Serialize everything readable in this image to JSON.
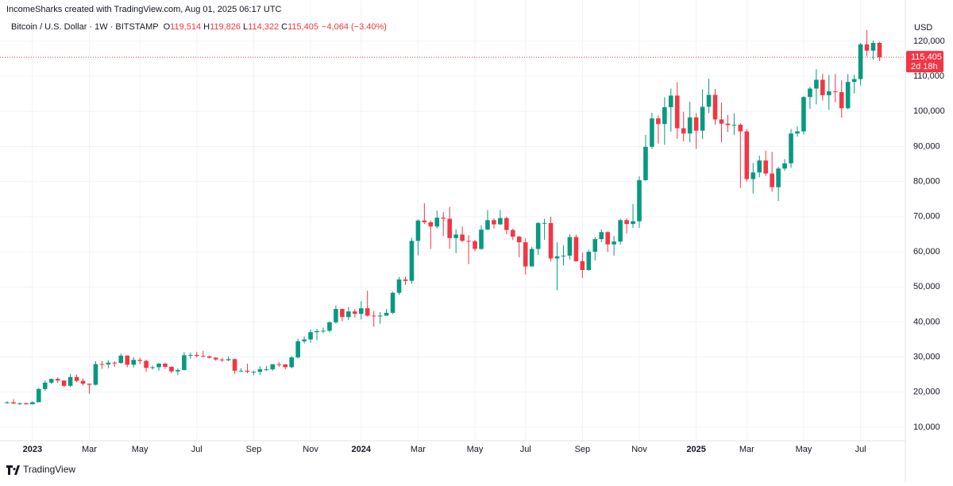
{
  "header": {
    "attribution": "IncomeSharks created with TradingView.com, Aug 01, 2025 06:17 UTC",
    "symbol": "Bitcoin / U.S. Dollar · 1W · BITSTAMP",
    "legend": [
      {
        "key": "O",
        "value": "119,514"
      },
      {
        "key": "H",
        "value": "119,826"
      },
      {
        "key": "L",
        "value": "114,322"
      },
      {
        "key": "C",
        "value": "115,405"
      }
    ],
    "change": "−4,064 (−3.40%)"
  },
  "chart_data": {
    "type": "candlestick",
    "currency": "USD",
    "up_color": "#089981",
    "down_color": "#f23645",
    "grid": true,
    "categories": [
      null,
      null,
      null,
      null,
      "2023",
      null,
      null,
      null,
      null,
      null,
      null,
      null,
      null,
      "Mar",
      null,
      null,
      null,
      null,
      null,
      null,
      null,
      "May",
      null,
      null,
      null,
      null,
      null,
      null,
      null,
      null,
      "Jul",
      null,
      null,
      null,
      null,
      null,
      null,
      null,
      null,
      "Sep",
      null,
      null,
      null,
      null,
      null,
      null,
      null,
      null,
      "Nov",
      null,
      null,
      null,
      null,
      null,
      null,
      null,
      "2024",
      null,
      null,
      null,
      null,
      null,
      null,
      null,
      null,
      "Mar",
      null,
      null,
      null,
      null,
      null,
      null,
      null,
      null,
      "May",
      null,
      null,
      null,
      null,
      null,
      null,
      null,
      "Jul",
      null,
      null,
      null,
      null,
      null,
      null,
      null,
      null,
      "Sep",
      null,
      null,
      null,
      null,
      null,
      null,
      null,
      null,
      "Nov",
      null,
      null,
      null,
      null,
      null,
      null,
      null,
      null,
      "2025",
      null,
      null,
      null,
      null,
      null,
      null,
      null,
      "Mar",
      null,
      null,
      null,
      null,
      null,
      null,
      null,
      null,
      "May",
      null,
      null,
      null,
      null,
      null,
      null,
      null,
      null,
      "Jul",
      null,
      null,
      null
    ],
    "open": [
      17000,
      17100,
      16750,
      16840,
      16550,
      17130,
      20900,
      22700,
      23750,
      23300,
      21800,
      24300,
      23200,
      22400,
      22100,
      28000,
      27900,
      28400,
      28300,
      30400,
      27800,
      29200,
      28900,
      26900,
      27100,
      28100,
      27200,
      25900,
      26300,
      30500,
      30600,
      30300,
      30200,
      29800,
      29300,
      29100,
      29400,
      26100,
      26100,
      25800,
      25800,
      26500,
      26500,
      27950,
      27900,
      27100,
      29900,
      34500,
      35000,
      37100,
      37400,
      37500,
      39900,
      43700,
      41400,
      43000,
      42300,
      43900,
      41800,
      41600,
      41800,
      42600,
      48300,
      52100,
      51700,
      63100,
      68900,
      68400,
      67200,
      69700,
      69400,
      63900,
      64900,
      63100,
      63000,
      60800,
      66300,
      69000,
      67800,
      69600,
      66200,
      64300,
      62700,
      55800,
      60800,
      68200,
      68200,
      58100,
      58700,
      58900,
      64200,
      57300,
      54800,
      60000,
      63600,
      65600,
      62100,
      62900,
      69000,
      67900,
      68700,
      80400,
      89900,
      98000,
      96400,
      101200,
      104500,
      95200,
      93700,
      98300,
      94500,
      101300,
      104700,
      97700,
      96500,
      96100,
      96200,
      94300,
      80700,
      82600,
      86000,
      82300,
      78400,
      83700,
      85200,
      93700,
      94300,
      104100,
      106500,
      109000,
      104600,
      105700,
      105500,
      100900,
      108400,
      109200,
      119100,
      117300,
      119514
    ],
    "high": [
      17400,
      18000,
      17000,
      16950,
      17400,
      21200,
      23300,
      23900,
      24200,
      23400,
      25200,
      25000,
      23900,
      22400,
      28800,
      28900,
      29100,
      28800,
      31000,
      30500,
      30000,
      29800,
      29200,
      27600,
      28300,
      28400,
      27400,
      26800,
      31400,
      31300,
      31500,
      31800,
      30400,
      30000,
      29800,
      30200,
      29500,
      26800,
      28100,
      26100,
      27400,
      27500,
      28000,
      28600,
      28000,
      30300,
      35200,
      35900,
      37900,
      38000,
      38400,
      40200,
      44700,
      43800,
      44300,
      43700,
      45900,
      48900,
      43100,
      42800,
      43700,
      48600,
      52800,
      52900,
      64000,
      69200,
      73800,
      68900,
      71700,
      71300,
      72800,
      66400,
      67200,
      64700,
      63400,
      67500,
      71900,
      69500,
      71900,
      70000,
      66600,
      64500,
      63800,
      61400,
      68400,
      69400,
      70000,
      62700,
      61800,
      65000,
      64900,
      59800,
      60600,
      64100,
      66400,
      65800,
      64500,
      69400,
      69500,
      73600,
      81500,
      93300,
      99600,
      98800,
      104000,
      106500,
      108300,
      99900,
      102700,
      99500,
      106300,
      109300,
      106400,
      102500,
      99000,
      99400,
      96500,
      95000,
      85300,
      87400,
      88800,
      88500,
      84200,
      86400,
      95000,
      95700,
      104300,
      107000,
      112000,
      110700,
      110400,
      110600,
      108900,
      110600,
      110500,
      119500,
      123200,
      120200,
      119826
    ],
    "low": [
      16700,
      16600,
      16300,
      16400,
      16500,
      17100,
      20400,
      22300,
      22600,
      21400,
      21400,
      22800,
      21900,
      19600,
      21900,
      26600,
      26800,
      27200,
      28100,
      27100,
      27000,
      28000,
      25800,
      26400,
      26100,
      26600,
      25400,
      24800,
      26200,
      29500,
      29900,
      30000,
      29600,
      28900,
      28600,
      28800,
      25200,
      25800,
      25400,
      24900,
      24900,
      26000,
      26100,
      27200,
      26500,
      26800,
      29600,
      33900,
      34100,
      34800,
      36800,
      37000,
      39500,
      40200,
      40500,
      41300,
      40700,
      41500,
      38600,
      39500,
      41800,
      42300,
      47700,
      50600,
      50900,
      59000,
      67900,
      60800,
      66600,
      64500,
      60800,
      59600,
      62800,
      56500,
      60100,
      60600,
      66300,
      66600,
      67600,
      65000,
      63300,
      58400,
      53500,
      56500,
      59100,
      63400,
      57200,
      49000,
      56100,
      57800,
      57200,
      52500,
      54600,
      57500,
      62700,
      59900,
      58900,
      62000,
      65200,
      66800,
      66800,
      80200,
      89300,
      90800,
      90500,
      94200,
      92200,
      91500,
      91200,
      89300,
      92100,
      99500,
      96200,
      91200,
      94100,
      93300,
      78200,
      80000,
      76600,
      81200,
      81600,
      77100,
      74500,
      83100,
      83900,
      92800,
      93400,
      100700,
      102000,
      103100,
      100400,
      102600,
      98200,
      100600,
      105100,
      107400,
      115700,
      114700,
      114322
    ],
    "close": [
      17100,
      16750,
      16840,
      16550,
      17130,
      20900,
      22700,
      23750,
      23300,
      21800,
      24300,
      23200,
      22400,
      22100,
      28000,
      27900,
      28400,
      28300,
      30400,
      27800,
      29200,
      28900,
      26900,
      27100,
      28100,
      27200,
      25900,
      26300,
      30500,
      30600,
      30300,
      30200,
      29800,
      29300,
      29100,
      29400,
      26100,
      26100,
      25800,
      25800,
      26500,
      26500,
      27950,
      27900,
      27100,
      29900,
      34500,
      35000,
      37100,
      37400,
      37500,
      39900,
      43700,
      41400,
      43000,
      42300,
      43900,
      41800,
      41600,
      41800,
      42600,
      48300,
      52100,
      51700,
      63100,
      68900,
      68400,
      67200,
      69700,
      69400,
      63900,
      64900,
      63100,
      63000,
      60800,
      66300,
      69000,
      67800,
      69600,
      66200,
      64300,
      62700,
      55800,
      60800,
      68200,
      68200,
      58100,
      58700,
      58900,
      64200,
      57300,
      54800,
      60000,
      63600,
      65600,
      62100,
      62900,
      69000,
      67900,
      68700,
      80400,
      89900,
      98000,
      96400,
      101200,
      104500,
      95200,
      93700,
      98300,
      94500,
      101300,
      104700,
      97700,
      96500,
      96100,
      96200,
      94300,
      80700,
      82600,
      86000,
      82300,
      78400,
      83700,
      85200,
      93700,
      94300,
      104100,
      106500,
      109000,
      104600,
      105700,
      105500,
      100900,
      108400,
      109200,
      119100,
      117300,
      119514,
      115405
    ],
    "ylim": [
      6150,
      125400
    ],
    "yticks": [
      {
        "value": 10000,
        "label": "10,000"
      },
      {
        "value": 20000,
        "label": "20,000"
      },
      {
        "value": 30000,
        "label": "30,000"
      },
      {
        "value": 40000,
        "label": "40,000"
      },
      {
        "value": 50000,
        "label": "50,000"
      },
      {
        "value": 60000,
        "label": "60,000"
      },
      {
        "value": 70000,
        "label": "70,000"
      },
      {
        "value": 80000,
        "label": "80,000"
      },
      {
        "value": 90000,
        "label": "90,000"
      },
      {
        "value": 100000,
        "label": "100,000"
      },
      {
        "value": 110000,
        "label": "110,000"
      },
      {
        "value": 120000,
        "label": "120,000"
      }
    ],
    "last_price": {
      "value": 115405,
      "label": "115,405"
    },
    "countdown": "2d 18h"
  },
  "footer": {
    "brand": "TradingView"
  }
}
